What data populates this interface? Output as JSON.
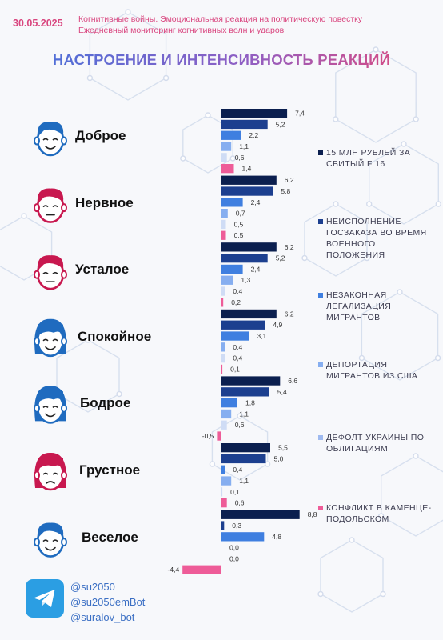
{
  "header": {
    "date": "30.05.2025",
    "subtitle_line1": "Когнитивные войны. Эмоциональная реакция на политическую повестку",
    "subtitle_line2": "Ежедневный мониторинг когнитивных волн и ударов"
  },
  "chart_data": {
    "type": "bar",
    "orientation": "horizontal",
    "title": "НАСТРОЕНИЕ И ИНТЕНСИВНОСТЬ РЕАКЦИЙ",
    "legend_position": "right",
    "categories": [
      "Доброе",
      "Нервное",
      "Усталое",
      "Спокойное",
      "Бодрое",
      "Грустное",
      "Веселое"
    ],
    "series": [
      {
        "name": "15 МЛН РУБЛЕЙ ЗА СБИТЫЙ F 16",
        "color": "#0b1f4f",
        "values": [
          7.4,
          6.2,
          6.2,
          6.2,
          6.6,
          5.5,
          8.8
        ]
      },
      {
        "name": "НЕИСПОЛНЕНИЕ ГОСЗАКАЗА ВО ВРЕМЯ ВОЕННОГО ПОЛОЖЕНИЯ",
        "color": "#1c3f8f",
        "values": [
          5.2,
          5.8,
          5.2,
          4.9,
          5.4,
          5.0,
          0.3
        ]
      },
      {
        "name": "НЕЗАКОННАЯ ЛЕГАЛИЗАЦИЯ МИГРАНТОВ",
        "color": "#3f7fe0",
        "values": [
          2.2,
          2.4,
          2.4,
          3.1,
          1.8,
          0.4,
          4.8
        ]
      },
      {
        "name": "ДЕПОРТАЦИЯ МИГРАНТОВ ИЗ США",
        "color": "#86aef0",
        "values": [
          1.1,
          0.7,
          1.3,
          0.4,
          1.1,
          1.1,
          0.0
        ]
      },
      {
        "name": "ДЕФОЛТ УКРАИНЫ ПО ОБЛИГАЦИЯМ",
        "color": "#cfdcf5",
        "values": [
          0.6,
          0.5,
          0.4,
          0.4,
          0.6,
          0.1,
          0.0
        ]
      },
      {
        "name": "КОНФЛИКТ В КАМЕНЦЕ-ПОДОЛЬСКОМ",
        "color": "#ee5c98",
        "values": [
          1.4,
          0.5,
          0.2,
          0.1,
          -0.5,
          0.6,
          -4.4
        ]
      }
    ],
    "value_labels": [
      [
        "7,4",
        "5,2",
        "2,2",
        "1,1",
        "0,6",
        "1,4"
      ],
      [
        "6,2",
        "5,8",
        "2,4",
        "0,7",
        "0,5",
        "0,5"
      ],
      [
        "6,2",
        "5,2",
        "2,4",
        "1,3",
        "0,4",
        "0,2"
      ],
      [
        "6,2",
        "4,9",
        "3,1",
        "0,4",
        "0,4",
        "0,1"
      ],
      [
        "6,6",
        "5,4",
        "1,8",
        "1,1",
        "0,6",
        "-0,5"
      ],
      [
        "5,5",
        "5,0",
        "0,4",
        "1,1",
        "0,1",
        "0,6"
      ],
      [
        "8,8",
        "0,3",
        "4,8",
        "0,0",
        "0,0",
        "-4,4"
      ]
    ],
    "face_colors": [
      "#1f6bbf",
      "#c8184f",
      "#c8184f",
      "#1f6bbf",
      "#1f6bbf",
      "#c8184f",
      "#1f6bbf"
    ],
    "face_icons": [
      "smiling-man-icon",
      "nervous-man-icon",
      "tired-man-icon",
      "calm-woman-icon",
      "cheerful-woman-icon",
      "sad-woman-icon",
      "happy-man-icon"
    ]
  },
  "footer": {
    "icon": "telegram-icon",
    "handles": [
      "@su2050",
      "@su2050emBot",
      "@suralov_bot"
    ]
  }
}
